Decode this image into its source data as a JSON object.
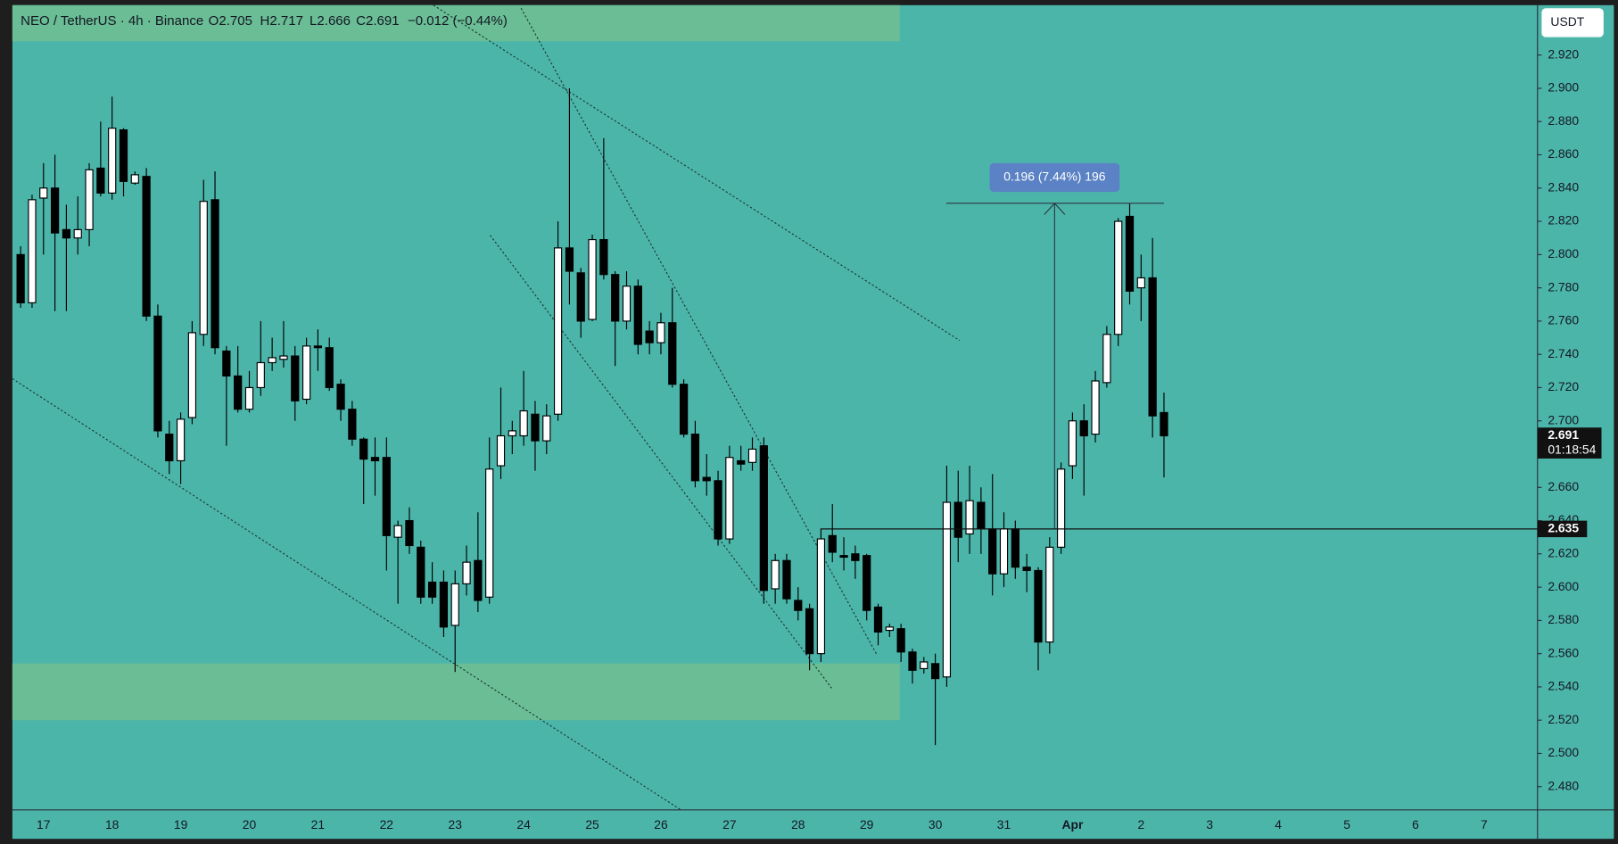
{
  "chart_data": {
    "type": "candlestick",
    "header": {
      "symbol": "NEO / TetherUS · 4h · Binance",
      "open": "O2.705",
      "high": "H2.717",
      "low": "L2.666",
      "close": "C2.691",
      "change": "−0.012 (−0.44%)"
    },
    "currency_button": "USDT",
    "measure_label": "0.196 (7.44%) 196",
    "price_line": 2.635,
    "last_price": 2.691,
    "countdown": "01:18:54",
    "up_color": "#ffffff",
    "down_color": "#000000",
    "categories": [
      null,
      null,
      "17",
      null,
      null,
      null,
      null,
      null,
      "18",
      null,
      null,
      null,
      null,
      null,
      "19",
      null,
      null,
      null,
      null,
      null,
      "20",
      null,
      null,
      null,
      null,
      null,
      "21",
      null,
      null,
      null,
      null,
      null,
      "22",
      null,
      null,
      null,
      null,
      null,
      "23",
      null,
      null,
      null,
      null,
      null,
      "24",
      null,
      null,
      null,
      null,
      null,
      "25",
      null,
      null,
      null,
      null,
      null,
      "26",
      null,
      null,
      null,
      null,
      null,
      "27",
      null,
      null,
      null,
      null,
      null,
      "28",
      null,
      null,
      null,
      null,
      null,
      "29",
      null,
      null,
      null,
      null,
      null,
      "30",
      null,
      null,
      null,
      null,
      null,
      "31",
      null,
      null,
      null,
      null,
      null,
      "Apr",
      null,
      null,
      null,
      null,
      null,
      "2",
      null,
      null,
      null,
      null,
      null,
      "3",
      null,
      null,
      null,
      null,
      null,
      "4",
      null,
      null,
      null,
      null,
      null,
      "5",
      null,
      null,
      null,
      null,
      null,
      "6",
      null,
      null,
      null,
      null,
      null,
      "7",
      null,
      null,
      null,
      null
    ],
    "open": [
      2.8,
      2.771,
      2.834,
      2.84,
      2.815,
      2.81,
      2.815,
      2.852,
      2.837,
      2.875,
      2.843,
      2.847,
      2.763,
      2.692,
      2.676,
      2.702,
      2.752,
      2.833,
      2.742,
      2.727,
      2.707,
      2.72,
      2.735,
      2.737,
      2.739,
      2.713,
      2.745,
      2.744,
      2.722,
      2.707,
      2.689,
      2.678,
      2.678,
      2.63,
      2.64,
      2.624,
      2.603,
      2.603,
      2.577,
      2.602,
      2.616,
      2.594,
      2.673,
      2.691,
      2.691,
      2.704,
      2.688,
      2.704,
      2.804,
      2.789,
      2.761,
      2.809,
      2.788,
      2.76,
      2.781,
      2.754,
      2.747,
      2.759,
      2.722,
      2.692,
      2.666,
      2.664,
      2.629,
      2.676,
      2.675,
      2.685,
      2.599,
      2.616,
      2.592,
      2.587,
      2.56,
      2.631,
      2.619,
      2.62,
      2.619,
      2.588,
      2.574,
      2.575,
      2.561,
      2.551,
      2.554,
      2.546,
      2.651,
      2.632,
      2.651,
      2.635,
      2.608,
      2.635,
      2.612,
      2.61,
      2.567,
      2.624,
      2.673,
      2.7,
      2.692,
      2.723,
      2.752,
      2.823,
      2.78,
      2.786,
      2.705,
      null,
      null,
      null,
      null,
      null,
      null,
      null,
      null,
      null,
      null,
      null,
      null,
      null,
      null,
      null,
      null,
      null,
      null,
      null,
      null,
      null,
      null,
      null,
      null,
      null,
      null,
      null,
      null,
      null,
      null,
      null,
      null
    ],
    "high": [
      2.805,
      2.836,
      2.855,
      2.86,
      2.83,
      2.835,
      2.855,
      2.88,
      2.895,
      2.876,
      2.85,
      2.852,
      2.77,
      2.7,
      2.705,
      2.76,
      2.845,
      2.85,
      2.745,
      2.745,
      2.73,
      2.76,
      2.75,
      2.76,
      2.745,
      2.75,
      2.755,
      2.75,
      2.725,
      2.712,
      2.69,
      2.69,
      2.69,
      2.64,
      2.648,
      2.628,
      2.615,
      2.61,
      2.61,
      2.625,
      2.645,
      2.69,
      2.72,
      2.7,
      2.73,
      2.712,
      2.71,
      2.82,
      2.9,
      2.792,
      2.812,
      2.87,
      2.79,
      2.79,
      2.785,
      2.76,
      2.765,
      2.78,
      2.725,
      2.7,
      2.68,
      2.67,
      2.685,
      2.685,
      2.69,
      2.69,
      2.62,
      2.62,
      2.6,
      2.59,
      2.635,
      2.65,
      2.63,
      2.625,
      2.62,
      2.59,
      2.578,
      2.578,
      2.563,
      2.558,
      2.56,
      2.673,
      2.67,
      2.673,
      2.66,
      2.668,
      2.645,
      2.64,
      2.62,
      2.612,
      2.63,
      2.675,
      2.705,
      2.71,
      2.73,
      2.757,
      2.822,
      2.831,
      2.8,
      2.81,
      2.717,
      null,
      null,
      null,
      null,
      null,
      null,
      null,
      null,
      null,
      null,
      null,
      null,
      null,
      null,
      null,
      null,
      null,
      null,
      null,
      null,
      null,
      null,
      null,
      null,
      null,
      null,
      null,
      null,
      null,
      null,
      null,
      null
    ],
    "low": [
      2.768,
      2.768,
      2.8,
      2.766,
      2.766,
      2.8,
      2.805,
      2.835,
      2.833,
      2.835,
      2.842,
      2.76,
      2.69,
      2.668,
      2.662,
      2.698,
      2.745,
      2.74,
      2.685,
      2.705,
      2.705,
      2.715,
      2.73,
      2.732,
      2.7,
      2.71,
      2.73,
      2.718,
      2.7,
      2.685,
      2.65,
      2.655,
      2.61,
      2.59,
      2.62,
      2.59,
      2.59,
      2.57,
      2.549,
      2.595,
      2.585,
      2.59,
      2.665,
      2.68,
      2.685,
      2.67,
      2.68,
      2.7,
      2.77,
      2.75,
      2.76,
      2.785,
      2.733,
      2.755,
      2.74,
      2.74,
      2.74,
      2.72,
      2.69,
      2.66,
      2.655,
      2.625,
      2.626,
      2.67,
      2.67,
      2.59,
      2.59,
      2.59,
      2.58,
      2.55,
      2.555,
      2.615,
      2.61,
      2.605,
      2.58,
      2.565,
      2.57,
      2.555,
      2.542,
      2.548,
      2.505,
      2.54,
      2.615,
      2.62,
      2.62,
      2.595,
      2.6,
      2.605,
      2.597,
      2.55,
      2.56,
      2.62,
      2.665,
      2.655,
      2.687,
      2.72,
      2.745,
      2.77,
      2.76,
      2.69,
      2.666,
      null,
      null,
      null,
      null,
      null,
      null,
      null,
      null,
      null,
      null,
      null,
      null,
      null,
      null,
      null,
      null,
      null,
      null,
      null,
      null,
      null,
      null,
      null,
      null,
      null,
      null,
      null,
      null,
      null,
      null,
      null,
      null
    ],
    "close": [
      2.771,
      2.833,
      2.84,
      2.813,
      2.81,
      2.815,
      2.851,
      2.837,
      2.876,
      2.844,
      2.848,
      2.763,
      2.694,
      2.676,
      2.701,
      2.753,
      2.832,
      2.744,
      2.727,
      2.707,
      2.72,
      2.735,
      2.738,
      2.739,
      2.712,
      2.745,
      2.744,
      2.72,
      2.707,
      2.689,
      2.677,
      2.676,
      2.631,
      2.637,
      2.625,
      2.594,
      2.594,
      2.576,
      2.602,
      2.615,
      2.592,
      2.671,
      2.691,
      2.694,
      2.706,
      2.688,
      2.703,
      2.804,
      2.79,
      2.76,
      2.809,
      2.788,
      2.76,
      2.781,
      2.746,
      2.747,
      2.759,
      2.722,
      2.692,
      2.664,
      2.664,
      2.629,
      2.678,
      2.674,
      2.683,
      2.598,
      2.616,
      2.593,
      2.586,
      2.56,
      2.629,
      2.621,
      2.618,
      2.616,
      2.586,
      2.573,
      2.576,
      2.561,
      2.55,
      2.555,
      2.545,
      2.651,
      2.63,
      2.652,
      2.635,
      2.608,
      2.635,
      2.612,
      2.61,
      2.567,
      2.624,
      2.671,
      2.7,
      2.691,
      2.724,
      2.752,
      2.82,
      2.778,
      2.786,
      2.703,
      2.691,
      null,
      null,
      null,
      null,
      null,
      null,
      null,
      null,
      null,
      null,
      null,
      null,
      null,
      null,
      null,
      null,
      null,
      null,
      null,
      null,
      null,
      null,
      null,
      null,
      null,
      null,
      null,
      null,
      null,
      null,
      null,
      null
    ],
    "ylim": [
      2.466,
      2.95
    ],
    "yticks": [
      {
        "value": 2.48,
        "label": "2.480"
      },
      {
        "value": 2.5,
        "label": "2.500"
      },
      {
        "value": 2.52,
        "label": "2.520"
      },
      {
        "value": 2.54,
        "label": "2.540"
      },
      {
        "value": 2.56,
        "label": "2.560"
      },
      {
        "value": 2.58,
        "label": "2.580"
      },
      {
        "value": 2.6,
        "label": "2.600"
      },
      {
        "value": 2.62,
        "label": "2.620"
      },
      {
        "value": 2.64,
        "label": "2.640"
      },
      {
        "value": 2.66,
        "label": "2.660"
      },
      {
        "value": 2.68,
        "label": "2.680"
      },
      {
        "value": 2.7,
        "label": "2.700"
      },
      {
        "value": 2.72,
        "label": "2.720"
      },
      {
        "value": 2.74,
        "label": "2.740"
      },
      {
        "value": 2.76,
        "label": "2.760"
      },
      {
        "value": 2.78,
        "label": "2.780"
      },
      {
        "value": 2.8,
        "label": "2.800"
      },
      {
        "value": 2.82,
        "label": "2.820"
      },
      {
        "value": 2.84,
        "label": "2.840"
      },
      {
        "value": 2.86,
        "label": "2.860"
      },
      {
        "value": 2.88,
        "label": "2.880"
      },
      {
        "value": 2.9,
        "label": "2.900"
      },
      {
        "value": 2.92,
        "label": "2.920"
      }
    ]
  }
}
